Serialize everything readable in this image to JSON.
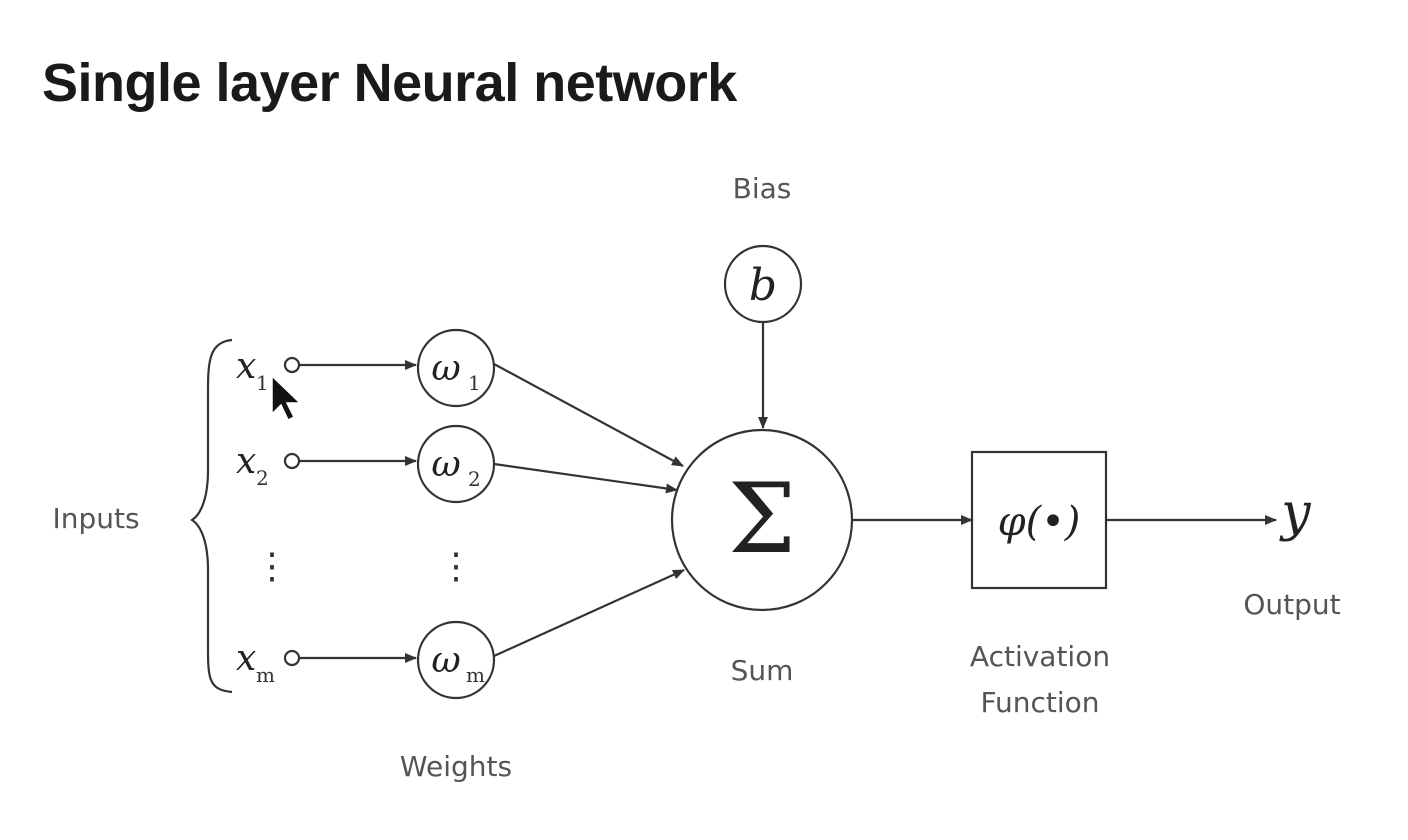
{
  "title": "Single layer Neural network",
  "labels": {
    "bias": "Bias",
    "inputs": "Inputs",
    "weights": "Weights",
    "sum": "Sum",
    "activation_line1": "Activation",
    "activation_line2": "Function",
    "output": "Output"
  },
  "symbols": {
    "bias": "b",
    "sum": "Σ",
    "activation": "φ(•)",
    "output": "y",
    "vdots": "⋮"
  },
  "inputs": [
    {
      "symbol": "x",
      "sub": "1"
    },
    {
      "symbol": "x",
      "sub": "2"
    },
    {
      "symbol": "x",
      "sub": "m"
    }
  ],
  "weights": [
    {
      "symbol": "ω",
      "sub": "1"
    },
    {
      "symbol": "ω",
      "sub": "2"
    },
    {
      "symbol": "ω",
      "sub": "m"
    }
  ]
}
